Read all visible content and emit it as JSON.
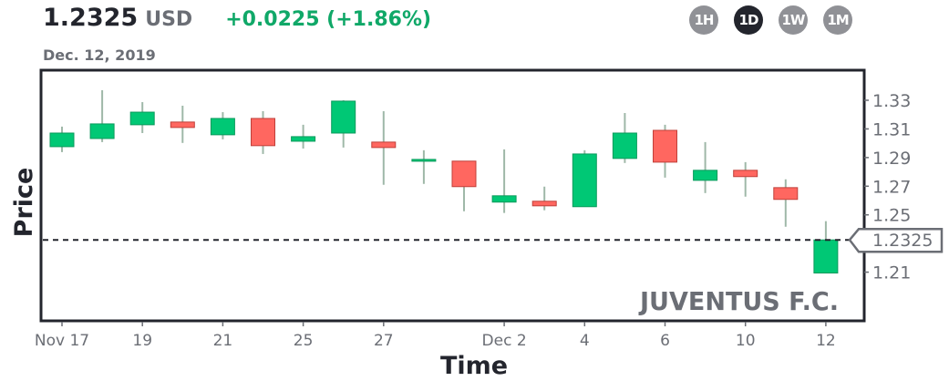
{
  "header": {
    "price": "1.2325",
    "currency": "USD",
    "change": "+0.0225 (+1.86%)",
    "date": "Dec. 12, 2019"
  },
  "timeframes": [
    {
      "label": "1H",
      "active": false
    },
    {
      "label": "1D",
      "active": true
    },
    {
      "label": "1W",
      "active": false
    },
    {
      "label": "1M",
      "active": false
    }
  ],
  "colors": {
    "up": "#00c875",
    "down": "#ff6760",
    "wick": "#9fb8a8",
    "change": "#10a868"
  },
  "chart_data": {
    "type": "candlestick",
    "title": "",
    "xlabel": "Time",
    "ylabel": "Price",
    "watermark": "JUVENTUS F.C.",
    "current_price": 1.2325,
    "current_price_label": "1.2325",
    "ylim": [
      1.176,
      1.351
    ],
    "y_ticks": [
      "1.33",
      "1.31",
      "1.29",
      "1.27",
      "1.25",
      "1.21"
    ],
    "x_ticks": [
      {
        "index": 0,
        "label": "Nov 17"
      },
      {
        "index": 2,
        "label": "19"
      },
      {
        "index": 4,
        "label": "21"
      },
      {
        "index": 6,
        "label": "25"
      },
      {
        "index": 8,
        "label": "27"
      },
      {
        "index": 11,
        "label": "Dec 2"
      },
      {
        "index": 13,
        "label": "4"
      },
      {
        "index": 15,
        "label": "6"
      },
      {
        "index": 17,
        "label": "10"
      },
      {
        "index": 19,
        "label": "12"
      }
    ],
    "grid": false,
    "candles": [
      {
        "date": "Nov 17",
        "o": 1.2976,
        "h": 1.3116,
        "l": 1.2938,
        "c": 1.3071
      },
      {
        "date": "Nov 18",
        "o": 1.3033,
        "h": 1.337,
        "l": 1.3008,
        "c": 1.3135
      },
      {
        "date": "Nov 19",
        "o": 1.3129,
        "h": 1.3287,
        "l": 1.3071,
        "c": 1.3217
      },
      {
        "date": "Nov 20",
        "o": 1.3148,
        "h": 1.3262,
        "l": 1.3002,
        "c": 1.311
      },
      {
        "date": "Nov 21",
        "o": 1.3059,
        "h": 1.3217,
        "l": 1.3027,
        "c": 1.3173
      },
      {
        "date": "Nov 22",
        "o": 1.3173,
        "h": 1.3224,
        "l": 1.2925,
        "c": 1.2983
      },
      {
        "date": "Nov 25",
        "o": 1.3014,
        "h": 1.3129,
        "l": 1.2963,
        "c": 1.3046
      },
      {
        "date": "Nov 26",
        "o": 1.3071,
        "h": 1.33,
        "l": 1.297,
        "c": 1.3294
      },
      {
        "date": "Nov 27",
        "o": 1.3008,
        "h": 1.3224,
        "l": 1.271,
        "c": 1.297
      },
      {
        "date": "Nov 28",
        "o": 1.2881,
        "h": 1.2951,
        "l": 1.2716,
        "c": 1.2887
      },
      {
        "date": "Nov 29",
        "o": 1.2875,
        "h": 1.2875,
        "l": 1.2525,
        "c": 1.2697
      },
      {
        "date": "Dec 2",
        "o": 1.2589,
        "h": 1.2957,
        "l": 1.2513,
        "c": 1.2633
      },
      {
        "date": "Dec 3",
        "o": 1.2595,
        "h": 1.2697,
        "l": 1.2532,
        "c": 1.2563
      },
      {
        "date": "Dec 4",
        "o": 1.2557,
        "h": 1.2951,
        "l": 1.2557,
        "c": 1.2925
      },
      {
        "date": "Dec 5",
        "o": 1.2894,
        "h": 1.3211,
        "l": 1.2862,
        "c": 1.3071
      },
      {
        "date": "Dec 6",
        "o": 1.309,
        "h": 1.3129,
        "l": 1.276,
        "c": 1.2868
      },
      {
        "date": "Dec 9",
        "o": 1.2741,
        "h": 1.3008,
        "l": 1.2652,
        "c": 1.2811
      },
      {
        "date": "Dec 10",
        "o": 1.2811,
        "h": 1.2868,
        "l": 1.2627,
        "c": 1.2767
      },
      {
        "date": "Dec 11",
        "o": 1.269,
        "h": 1.2748,
        "l": 1.2417,
        "c": 1.2608
      },
      {
        "date": "Dec 12",
        "o": 1.2094,
        "h": 1.2456,
        "l": 1.2094,
        "c": 1.2325
      }
    ]
  }
}
